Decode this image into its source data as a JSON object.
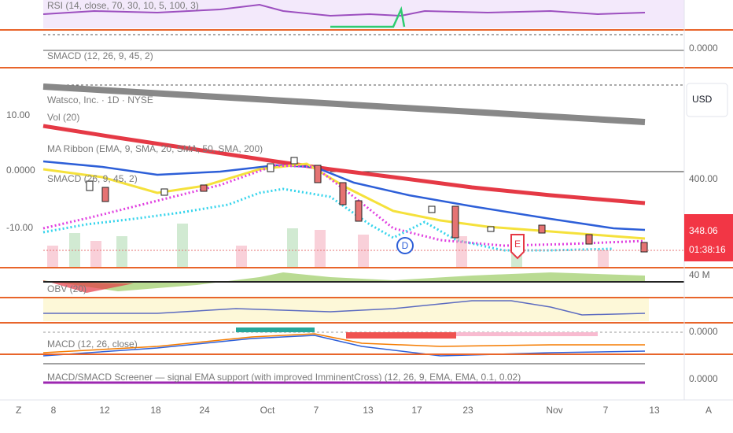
{
  "top_indicator": "RSI (14, close, 70, 30, 10, 5, 100, 3)",
  "panes": [
    "SMACD (12, 26, 9, 45, 2)",
    "Watsco, Inc. · 1D · NYSE",
    "Vol (20)",
    "MA Ribbon (EMA, 9, SMA, 20, SMA, 50, SMA, 200)",
    "SMACD (26, 9, 45, 2)",
    "OBV (20)",
    "MACD (12, 26, close)",
    "MACD/SMACD Screener — signal EMA support (with improved ImminentCross) (12, 26, 9, EMA, EMA, 0.1, 0.02)"
  ],
  "left_axis": [
    "10.00",
    "0.0000",
    "-10.00"
  ],
  "right_axis": {
    "top": "0.0000",
    "currency": "USD",
    "price": "400.00",
    "last_price": "348.06",
    "countdown": "01:38:16",
    "volume": "40 M",
    "macd": "0.0000",
    "screener": "0.0000"
  },
  "markers": [
    "D",
    "E"
  ],
  "x_axis": [
    "8",
    "12",
    "18",
    "24",
    "Oct",
    "7",
    "13",
    "17",
    "23",
    "Nov",
    "7",
    "13"
  ],
  "corners": [
    "Z",
    "A"
  ]
}
